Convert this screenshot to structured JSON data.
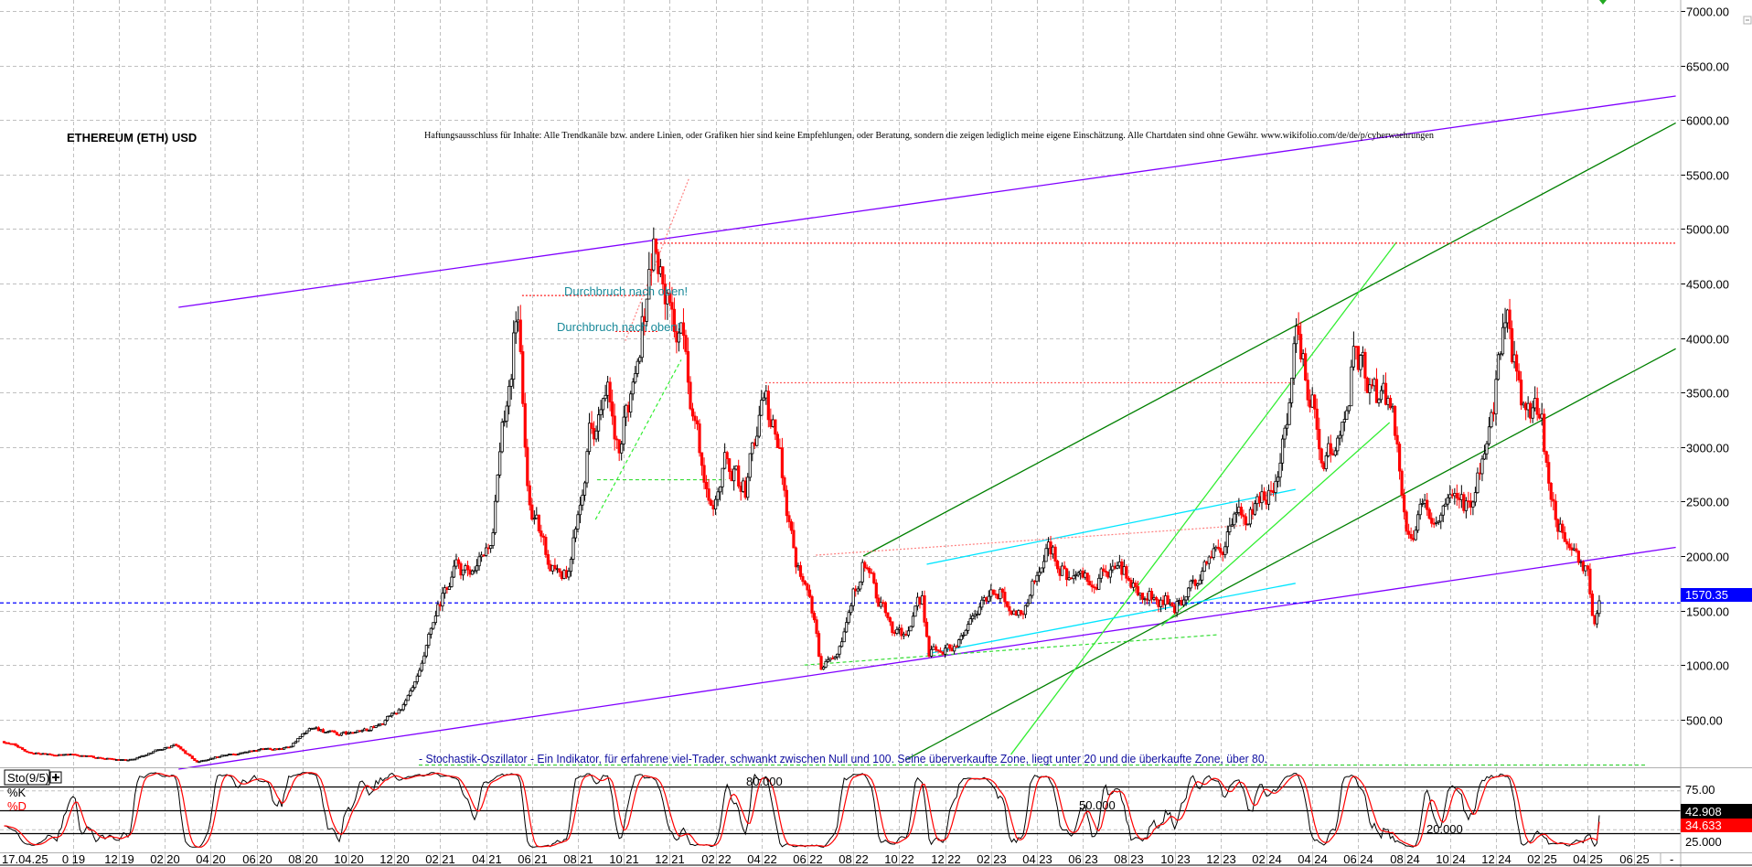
{
  "header": {
    "title": "ETHEREUM (ETH) USD",
    "disclaimer": "Haftungsausschluss für Inhalte: Alle Trendkanäle bzw. andere Linien, oder Grafiken hier sind keine Empfehlungen, oder Beratung, sondern die zeigen lediglich meine eigene Einschätzung. Alle Chartdaten sind ohne Gewähr.  www.wikifolio.com/de/de/p/cyberwaehrungen"
  },
  "annotations": {
    "breakout_1": "Durchbruch nach oben!",
    "breakout_2": "Durchbruch nach oben!"
  },
  "oscillator": {
    "indicator_label": "Sto(9/5)",
    "add_icon": "plus-box-icon",
    "k_label": "%K",
    "d_label": "%D",
    "description": "- Stochastik-Oszillator - Ein Indikator, für erfahrene viel-Trader, schwankt zwischen Null und 100. Seine überverkaufte Zone, liegt unter 20 und die überkaufte Zone, über 80.",
    "level_80_label": "80.000",
    "level_50_label": "50.000",
    "level_20_label": "20.000",
    "axis_75_label": "75.00",
    "axis_25_label": "25.000",
    "k_value": "42.908",
    "d_value": "34.633"
  },
  "price_axis": {
    "current_price_label": "1570.35"
  },
  "date_axis": {
    "start_label": "17.04.25",
    "end_label": "-"
  },
  "chart_data": {
    "type": "candlestick",
    "title": "ETHEREUM (ETH) USD",
    "ylim": [
      0,
      7000
    ],
    "y_ticks": [
      500,
      1000,
      1500,
      2000,
      2500,
      3000,
      3500,
      4000,
      4500,
      5000,
      5500,
      6000,
      6500,
      7000
    ],
    "y_scale": "linear",
    "grid": true,
    "current_price": 1570.35,
    "x_ticks": [
      {
        "date": "2019-10-01",
        "label": "0 19"
      },
      {
        "date": "2019-12-01",
        "label": "12 19"
      },
      {
        "date": "2020-02-01",
        "label": "02 20"
      },
      {
        "date": "2020-04-01",
        "label": "04 20"
      },
      {
        "date": "2020-06-01",
        "label": "06 20"
      },
      {
        "date": "2020-08-01",
        "label": "08 20"
      },
      {
        "date": "2020-10-01",
        "label": "10 20"
      },
      {
        "date": "2020-12-01",
        "label": "12 20"
      },
      {
        "date": "2021-02-01",
        "label": "02 21"
      },
      {
        "date": "2021-04-01",
        "label": "04 21"
      },
      {
        "date": "2021-06-01",
        "label": "06 21"
      },
      {
        "date": "2021-08-01",
        "label": "08 21"
      },
      {
        "date": "2021-10-01",
        "label": "10 21"
      },
      {
        "date": "2021-12-01",
        "label": "12 21"
      },
      {
        "date": "2022-02-01",
        "label": "02 22"
      },
      {
        "date": "2022-04-01",
        "label": "04 22"
      },
      {
        "date": "2022-06-01",
        "label": "06 22"
      },
      {
        "date": "2022-08-01",
        "label": "08 22"
      },
      {
        "date": "2022-10-01",
        "label": "10 22"
      },
      {
        "date": "2022-12-01",
        "label": "12 22"
      },
      {
        "date": "2023-02-01",
        "label": "02 23"
      },
      {
        "date": "2023-04-01",
        "label": "04 23"
      },
      {
        "date": "2023-06-01",
        "label": "06 23"
      },
      {
        "date": "2023-08-01",
        "label": "08 23"
      },
      {
        "date": "2023-10-01",
        "label": "10 23"
      },
      {
        "date": "2023-12-01",
        "label": "12 23"
      },
      {
        "date": "2024-02-01",
        "label": "02 24"
      },
      {
        "date": "2024-04-01",
        "label": "04 24"
      },
      {
        "date": "2024-06-01",
        "label": "06 24"
      },
      {
        "date": "2024-08-01",
        "label": "08 24"
      },
      {
        "date": "2024-10-01",
        "label": "10 24"
      },
      {
        "date": "2024-12-01",
        "label": "12 24"
      },
      {
        "date": "2025-02-01",
        "label": "02 25"
      },
      {
        "date": "2025-04-01",
        "label": "04 25"
      },
      {
        "date": "2025-06-01",
        "label": "06 25"
      }
    ],
    "price_path": [
      [
        "2019-07-01",
        300
      ],
      [
        "2019-08-01",
        210
      ],
      [
        "2019-09-01",
        180
      ],
      [
        "2019-10-01",
        175
      ],
      [
        "2019-11-01",
        150
      ],
      [
        "2019-12-15",
        130
      ],
      [
        "2020-02-14",
        270
      ],
      [
        "2020-03-13",
        110
      ],
      [
        "2020-04-15",
        170
      ],
      [
        "2020-05-15",
        200
      ],
      [
        "2020-06-15",
        230
      ],
      [
        "2020-07-15",
        250
      ],
      [
        "2020-08-15",
        430
      ],
      [
        "2020-09-15",
        360
      ],
      [
        "2020-10-15",
        380
      ],
      [
        "2020-11-15",
        460
      ],
      [
        "2020-12-15",
        640
      ],
      [
        "2021-01-05",
        900
      ],
      [
        "2021-01-20",
        1300
      ],
      [
        "2021-02-20",
        1900
      ],
      [
        "2021-03-15",
        1750
      ],
      [
        "2021-04-10",
        2200
      ],
      [
        "2021-05-12",
        4380
      ],
      [
        "2021-05-25",
        2600
      ],
      [
        "2021-06-20",
        2000
      ],
      [
        "2021-07-20",
        1800
      ],
      [
        "2021-08-15",
        3200
      ],
      [
        "2021-09-10",
        3400
      ],
      [
        "2021-09-25",
        2800
      ],
      [
        "2021-10-20",
        4000
      ],
      [
        "2021-11-10",
        4870
      ],
      [
        "2021-12-01",
        4200
      ],
      [
        "2021-12-20",
        3900
      ],
      [
        "2022-01-22",
        2400
      ],
      [
        "2022-02-15",
        2900
      ],
      [
        "2022-03-10",
        2600
      ],
      [
        "2022-04-02",
        3500
      ],
      [
        "2022-04-25",
        2900
      ],
      [
        "2022-05-15",
        2000
      ],
      [
        "2022-06-01",
        1800
      ],
      [
        "2022-06-18",
        1000
      ],
      [
        "2022-07-10",
        1200
      ],
      [
        "2022-08-14",
        1950
      ],
      [
        "2022-09-05",
        1550
      ],
      [
        "2022-09-25",
        1300
      ],
      [
        "2022-10-15",
        1300
      ],
      [
        "2022-11-01",
        1600
      ],
      [
        "2022-11-10",
        1100
      ],
      [
        "2022-12-15",
        1200
      ],
      [
        "2023-01-20",
        1600
      ],
      [
        "2023-02-15",
        1650
      ],
      [
        "2023-03-10",
        1450
      ],
      [
        "2023-04-15",
        2100
      ],
      [
        "2023-05-15",
        1800
      ],
      [
        "2023-06-15",
        1700
      ],
      [
        "2023-07-15",
        1950
      ],
      [
        "2023-08-15",
        1650
      ],
      [
        "2023-09-15",
        1600
      ],
      [
        "2023-10-15",
        1550
      ],
      [
        "2023-11-01",
        1800
      ],
      [
        "2023-12-01",
        2100
      ],
      [
        "2023-12-25",
        2300
      ],
      [
        "2024-01-20",
        2400
      ],
      [
        "2024-02-15",
        2800
      ],
      [
        "2024-03-12",
        4090
      ],
      [
        "2024-04-15",
        3000
      ],
      [
        "2024-05-01",
        2900
      ],
      [
        "2024-05-26",
        3900
      ],
      [
        "2024-06-20",
        3400
      ],
      [
        "2024-07-15",
        3400
      ],
      [
        "2024-08-05",
        2300
      ],
      [
        "2024-09-05",
        2400
      ],
      [
        "2024-10-10",
        2400
      ],
      [
        "2024-11-01",
        2500
      ],
      [
        "2024-11-25",
        3400
      ],
      [
        "2024-12-16",
        4100
      ],
      [
        "2025-01-10",
        3300
      ],
      [
        "2025-01-30",
        3300
      ],
      [
        "2025-02-05",
        2700
      ],
      [
        "2025-03-01",
        2200
      ],
      [
        "2025-03-20",
        1900
      ],
      [
        "2025-04-01",
        1800
      ],
      [
        "2025-04-09",
        1420
      ],
      [
        "2025-04-17",
        1570
      ]
    ],
    "candle_colors": {
      "up": "#000000",
      "down": "#ff0000"
    },
    "trend_lines": [
      {
        "name": "upper-channel-purple",
        "color": "#8000ff",
        "style": "solid",
        "from": [
          "2020-02-19",
          4282
        ],
        "to": [
          "2025-07-26",
          6220
        ]
      },
      {
        "name": "lower-channel-purple",
        "color": "#8000ff",
        "style": "solid",
        "from": [
          "2020-02-19",
          45
        ],
        "to": [
          "2025-07-26",
          2080
        ]
      },
      {
        "name": "upper-channel-green",
        "color": "#008000",
        "style": "solid",
        "from": [
          "2022-08-14",
          2000
        ],
        "to": [
          "2025-07-26",
          5973
        ]
      },
      {
        "name": "lower-channel-green",
        "color": "#008000",
        "style": "solid",
        "from": [
          "2022-10-09",
          129
        ],
        "to": [
          "2025-07-26",
          3902
        ]
      },
      {
        "name": "light-green-fan-1",
        "color": "#33ee33",
        "style": "solid",
        "from": [
          "2023-02-27",
          180
        ],
        "to": [
          "2024-07-21",
          4880
        ]
      },
      {
        "name": "light-green-fan-2",
        "color": "#33ee33",
        "style": "solid",
        "from": [
          "2023-09-14",
          1360
        ],
        "to": [
          "2024-07-12",
          3225
        ]
      },
      {
        "name": "light-green-diag-2021",
        "color": "#33ee33",
        "style": "dashed",
        "from": [
          "2021-08-24",
          2335
        ],
        "to": [
          "2021-12-16",
          3800
        ]
      },
      {
        "name": "support-2700",
        "color": "#33dd33",
        "style": "dashed",
        "from": [
          "2021-08-26",
          2700
        ],
        "to": [
          "2022-02-14",
          2700
        ]
      },
      {
        "name": "support-green-2022",
        "color": "#33dd33",
        "style": "dashed",
        "from": [
          "2022-05-27",
          1000
        ],
        "to": [
          "2023-11-27",
          1278
        ]
      },
      {
        "name": "cyan-upper",
        "color": "#00e5ff",
        "style": "solid",
        "from": [
          "2022-11-07",
          1925
        ],
        "to": [
          "2024-03-09",
          2611
        ]
      },
      {
        "name": "cyan-lower",
        "color": "#00e5ff",
        "style": "solid",
        "from": [
          "2022-11-07",
          1103
        ],
        "to": [
          "2024-03-09",
          1750
        ]
      },
      {
        "name": "resistance-4870",
        "color": "#ff2020",
        "style": "dotted",
        "from": [
          "2021-11-09",
          4870
        ],
        "to": [
          "2025-07-26",
          4870
        ]
      },
      {
        "name": "resistance-4390",
        "color": "#ff2020",
        "style": "dotted",
        "from": [
          "2021-05-18",
          4390
        ],
        "to": [
          "2021-11-01",
          4390
        ]
      },
      {
        "name": "resistance-4060",
        "color": "#ff2020",
        "style": "dotted",
        "from": [
          "2021-09-20",
          4060
        ],
        "to": [
          "2021-11-15",
          4060
        ]
      },
      {
        "name": "resistance-3590",
        "color": "#ff6060",
        "style": "dotted",
        "from": [
          "2022-04-06",
          3590
        ],
        "to": [
          "2024-03-09",
          3590
        ]
      },
      {
        "name": "pink-diag-2021",
        "color": "#ff8080",
        "style": "dotted",
        "from": [
          "2021-10-03",
          3974
        ],
        "to": [
          "2021-12-26",
          5461
        ]
      },
      {
        "name": "pink-line-2022",
        "color": "#ff8080",
        "style": "dotted",
        "from": [
          "2022-06-12",
          2008
        ],
        "to": [
          "2024-01-10",
          2285
        ]
      }
    ],
    "oscillator": {
      "type": "stochastic",
      "k_period": 9,
      "d_period": 5,
      "levels": [
        20,
        50,
        80
      ],
      "ylim": [
        0,
        100
      ],
      "k_color": "#000000",
      "d_color": "#ff0000",
      "k_last": 42.908,
      "d_last": 34.633
    },
    "colors": {
      "current_price": "#0000ff",
      "grid": "#c0c0c0",
      "bottom_line": "#22cc22"
    }
  }
}
